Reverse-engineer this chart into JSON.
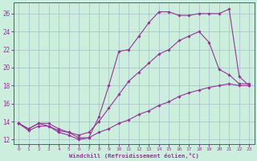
{
  "xlabel": "Windchill (Refroidissement éolien,°C)",
  "bg_color": "#cceedd",
  "line_color": "#993399",
  "grid_color": "#aabbcc",
  "series": [
    {
      "x": [
        0,
        1,
        2,
        3,
        4,
        5,
        6,
        7,
        8,
        9,
        10,
        11,
        12,
        13,
        14,
        15,
        16,
        17,
        18,
        19,
        20,
        21,
        22,
        23
      ],
      "y": [
        13.8,
        13.0,
        13.5,
        13.5,
        12.8,
        12.5,
        12.0,
        12.2,
        14.5,
        18.0,
        21.8,
        22.0,
        23.5,
        25.0,
        26.2,
        26.2,
        25.8,
        25.8,
        26.0,
        26.0,
        26.0,
        26.5,
        19.0,
        18.0
      ]
    },
    {
      "x": [
        0,
        1,
        2,
        3,
        4,
        5,
        6,
        7,
        8,
        9,
        10,
        11,
        12,
        13,
        14,
        15,
        16,
        17,
        18,
        19,
        20,
        21,
        22,
        23
      ],
      "y": [
        13.8,
        13.2,
        13.8,
        13.8,
        13.2,
        12.8,
        12.5,
        12.8,
        14.0,
        15.5,
        17.0,
        18.5,
        19.5,
        20.5,
        21.5,
        22.0,
        23.0,
        23.5,
        24.0,
        22.8,
        19.8,
        19.2,
        18.2,
        18.2
      ]
    },
    {
      "x": [
        0,
        1,
        2,
        3,
        4,
        5,
        6,
        7,
        8,
        9,
        10,
        11,
        12,
        13,
        14,
        15,
        16,
        17,
        18,
        19,
        20,
        21,
        22,
        23
      ],
      "y": [
        13.8,
        13.2,
        13.8,
        13.5,
        13.0,
        12.8,
        12.2,
        12.2,
        12.8,
        13.2,
        13.8,
        14.2,
        14.8,
        15.2,
        15.8,
        16.2,
        16.8,
        17.2,
        17.5,
        17.8,
        18.0,
        18.2,
        18.0,
        18.0
      ]
    }
  ],
  "ylim": [
    11.5,
    27.2
  ],
  "xlim": [
    -0.5,
    23.5
  ],
  "yticks": [
    12,
    14,
    16,
    18,
    20,
    22,
    24,
    26
  ],
  "xticks": [
    0,
    1,
    2,
    3,
    4,
    5,
    6,
    7,
    8,
    9,
    10,
    11,
    12,
    13,
    14,
    15,
    16,
    17,
    18,
    19,
    20,
    21,
    22,
    23
  ]
}
